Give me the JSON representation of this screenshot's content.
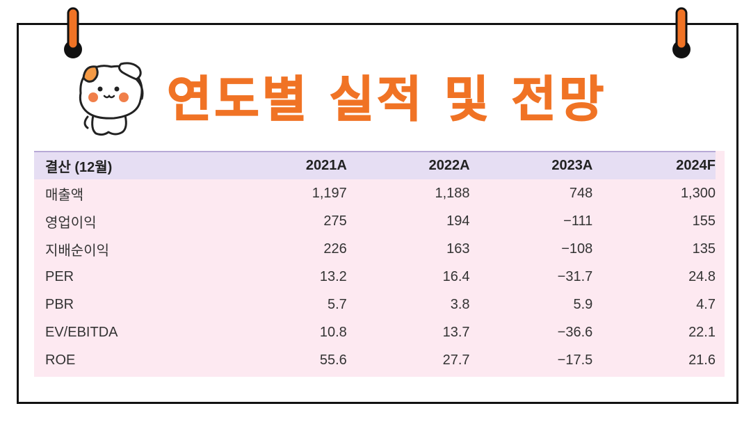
{
  "title": "연도별 실적 및 전망",
  "colors": {
    "title": "#f07325",
    "header_bg": "#e6def3",
    "table_bg": "#fde9f1",
    "frame": "#111111"
  },
  "table": {
    "headers": [
      "결산 (12월)",
      "2021A",
      "2022A",
      "2023A",
      "2024F"
    ],
    "rows": [
      [
        "매출액",
        "1,197",
        "1,188",
        "748",
        "1,300"
      ],
      [
        "영업이익",
        "275",
        "194",
        "−111",
        "155"
      ],
      [
        "지배순이익",
        "226",
        "163",
        "−108",
        "135"
      ],
      [
        "PER",
        "13.2",
        "16.4",
        "−31.7",
        "24.8"
      ],
      [
        "PBR",
        "5.7",
        "3.8",
        "5.9",
        "4.7"
      ],
      [
        "EV/EBITDA",
        "10.8",
        "13.7",
        "−36.6",
        "22.1"
      ],
      [
        "ROE",
        "55.6",
        "27.7",
        "−17.5",
        "21.6"
      ]
    ]
  }
}
